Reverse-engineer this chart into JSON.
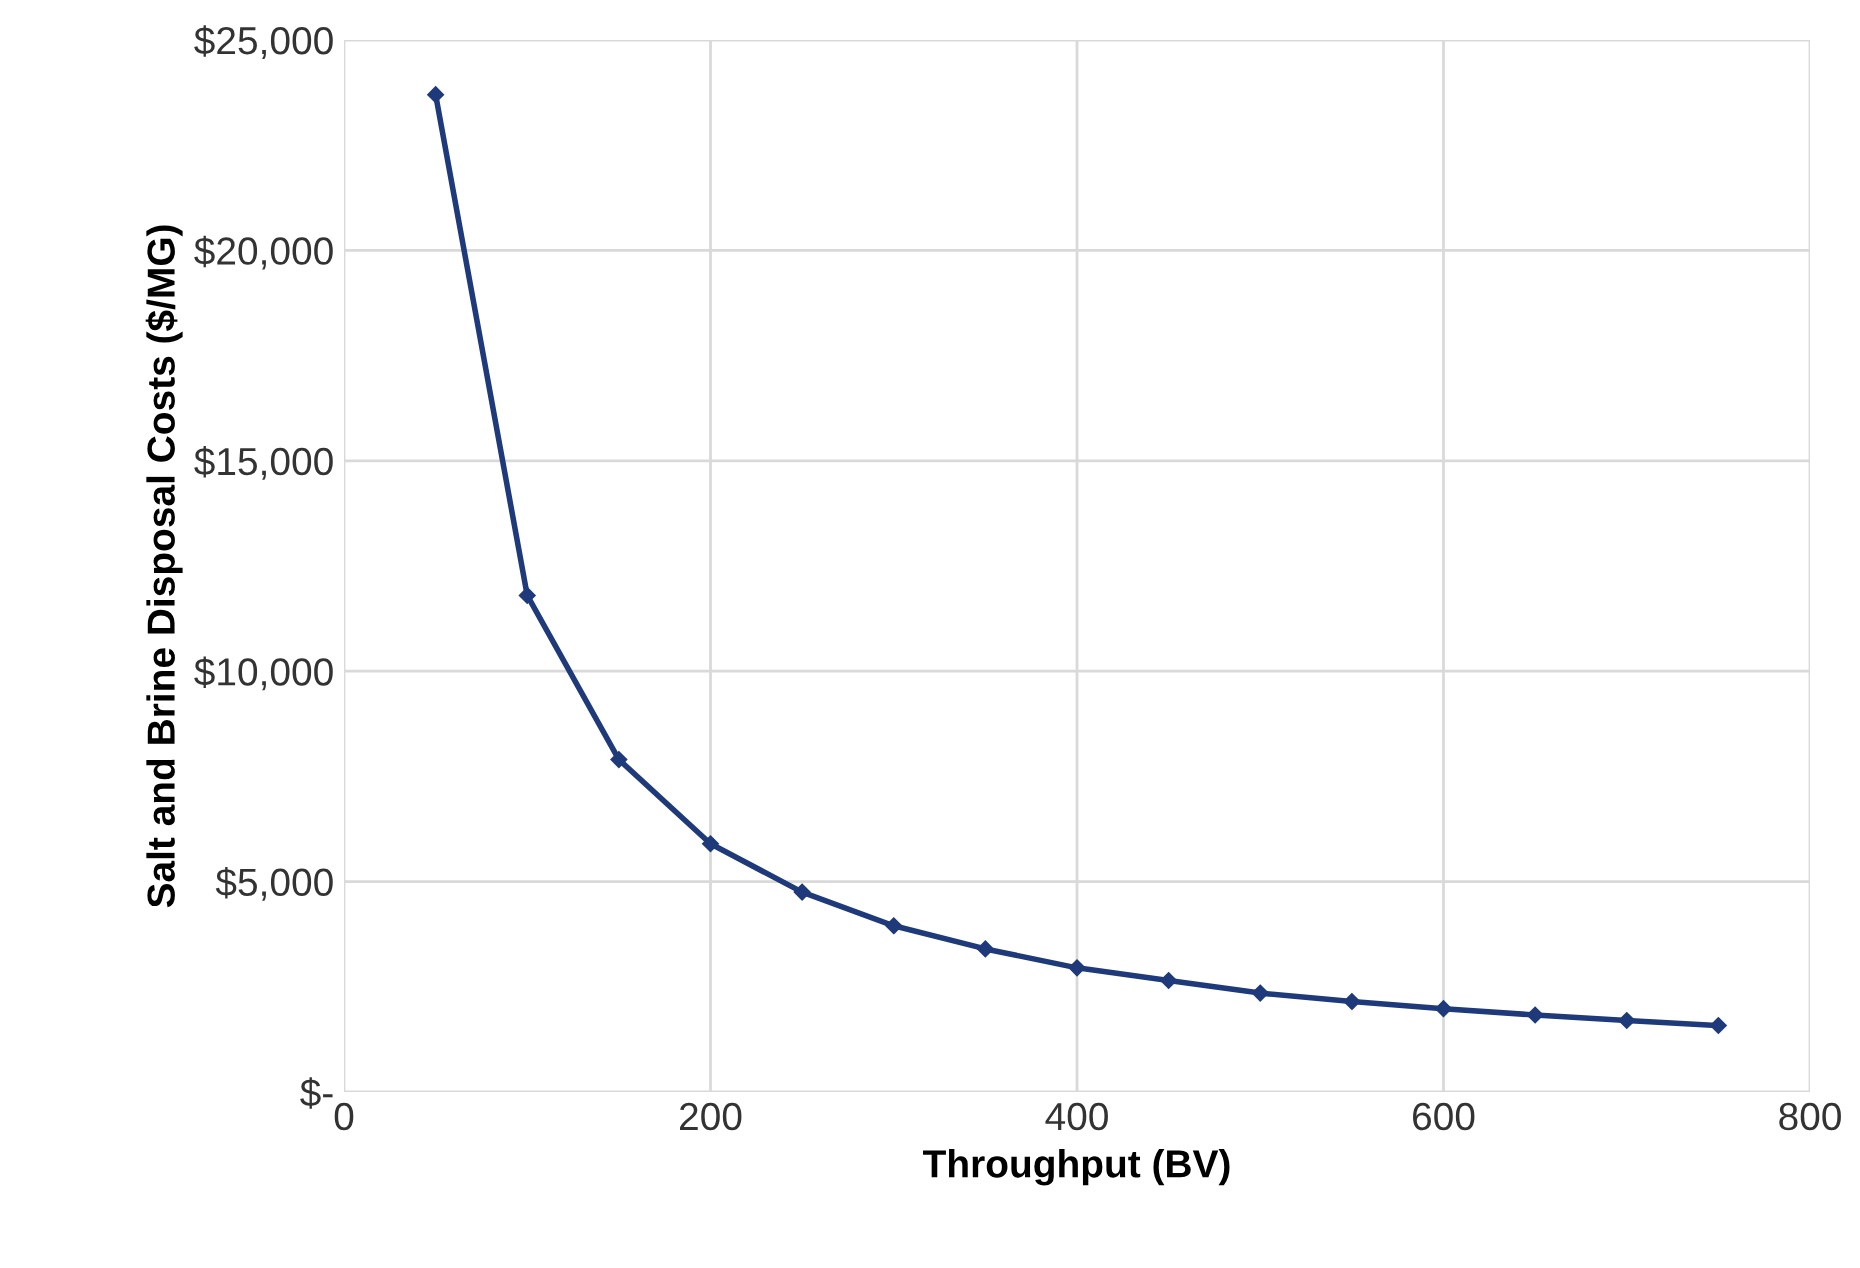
{
  "chart_data": {
    "type": "line",
    "xlabel": "Throughput (BV)",
    "ylabel": "Salt and Brine Disposal Costs ($/MG)",
    "x": [
      50,
      100,
      150,
      200,
      250,
      300,
      350,
      400,
      450,
      500,
      550,
      600,
      650,
      700,
      750
    ],
    "series": [
      {
        "color": "#1f3a7a",
        "values": [
          23700,
          11800,
          7900,
          5900,
          4750,
          3950,
          3400,
          2950,
          2650,
          2350,
          2150,
          1980,
          1830,
          1700,
          1580
        ]
      }
    ],
    "xlim": [
      0,
      800
    ],
    "xticks": [
      0,
      200,
      400,
      600,
      800
    ],
    "ylim": [
      0,
      25000
    ],
    "yticks": [
      {
        "value": 0,
        "label": "$-"
      },
      {
        "value": 5000,
        "label": "$5,000"
      },
      {
        "value": 10000,
        "label": "$10,000"
      },
      {
        "value": 15000,
        "label": "$15,000"
      },
      {
        "value": 20000,
        "label": "$20,000"
      },
      {
        "value": 25000,
        "label": "$25,000"
      }
    ],
    "grid": true,
    "marker": "diamond",
    "line_style": "solid",
    "legend": false
  }
}
